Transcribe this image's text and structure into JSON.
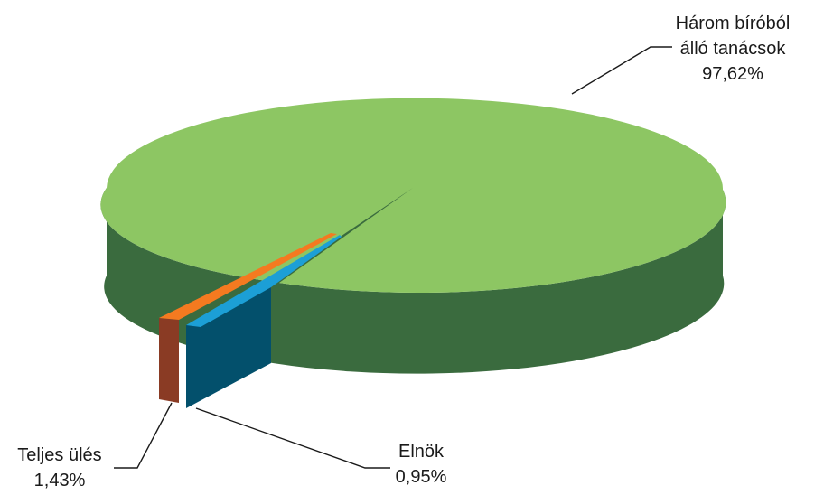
{
  "chart_data": {
    "type": "pie",
    "style": "3d-exploded",
    "slices": [
      {
        "label_lines": [
          "Három bíróból",
          "álló tanácsok"
        ],
        "value_text": "97,62%",
        "value": 97.62,
        "top_color": "#8dc663",
        "side_color": "#3a6b3e"
      },
      {
        "label_lines": [
          "Elnök"
        ],
        "value_text": "0,95%",
        "value": 0.95,
        "top_color": "#1c9fd6",
        "side_color": "#03506c"
      },
      {
        "label_lines": [
          "Teljes ülés"
        ],
        "value_text": "1,43%",
        "value": 1.43,
        "top_color": "#f47a20",
        "side_color": "#8a3b24"
      }
    ]
  }
}
